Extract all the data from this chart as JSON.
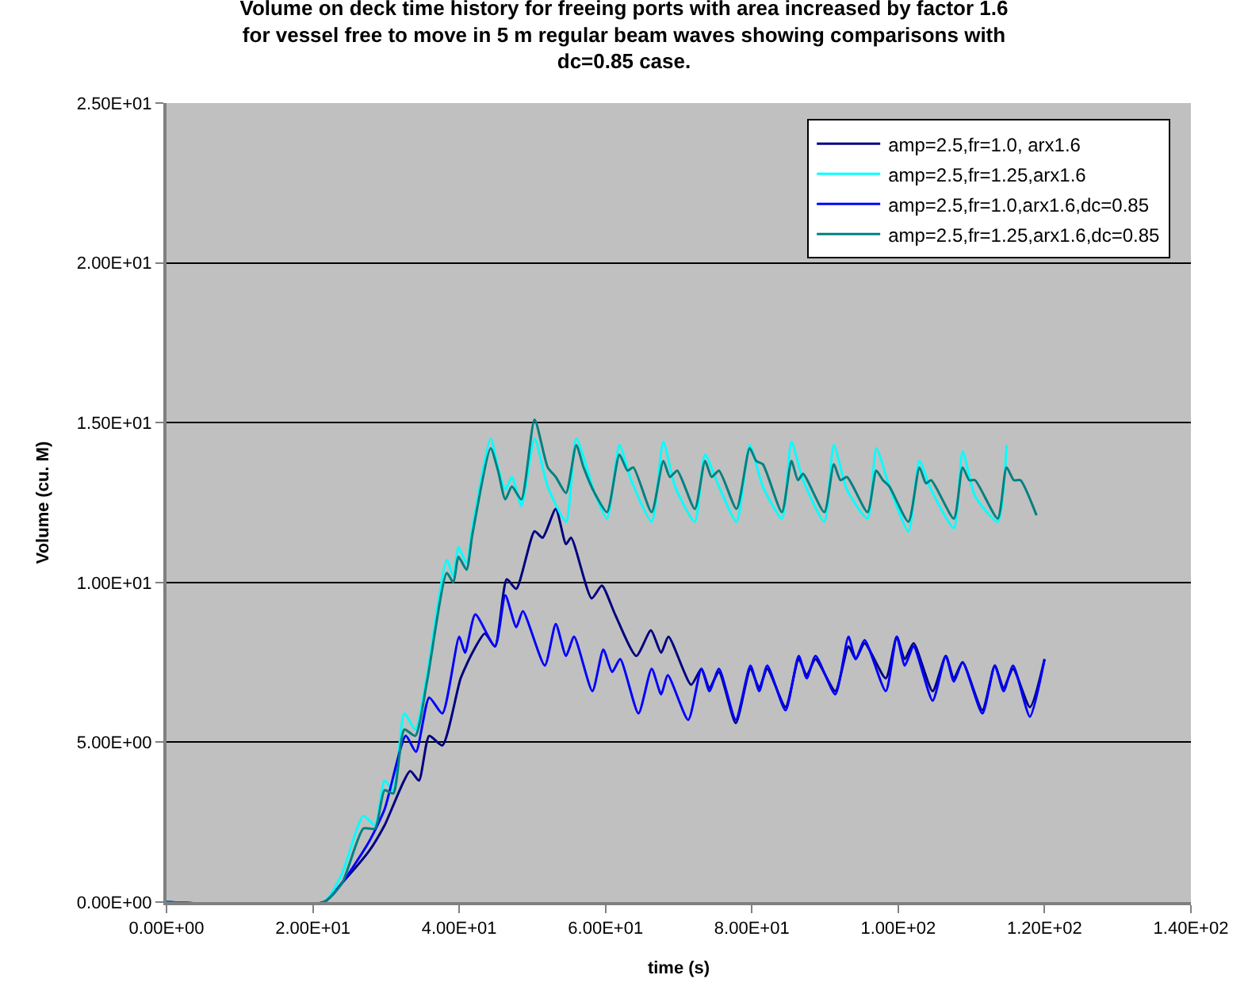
{
  "chart_data": {
    "type": "line",
    "title": "Volume on deck time history for freeing ports with area increased by factor 1.6 for vessel free to move in 5 m regular beam waves showing comparisons with dc=0.85 case.",
    "xlabel": "time (s)",
    "ylabel": "Volume (cu. M)",
    "xlim": [
      0,
      140
    ],
    "xticks": [
      {
        "value": 0,
        "label": "0.00E+00"
      },
      {
        "value": 20,
        "label": "2.00E+01"
      },
      {
        "value": 40,
        "label": "4.00E+01"
      },
      {
        "value": 60,
        "label": "6.00E+01"
      },
      {
        "value": 80,
        "label": "8.00E+01"
      },
      {
        "value": 100,
        "label": "1.00E+02"
      },
      {
        "value": 120,
        "label": "1.20E+02"
      },
      {
        "value": 140,
        "label": "1.40E+02"
      }
    ],
    "ylim": [
      0,
      25
    ],
    "yticks": [
      {
        "value": 0,
        "label": "0.00E+00"
      },
      {
        "value": 5,
        "label": "5.00E+00"
      },
      {
        "value": 10,
        "label": "1.00E+01"
      },
      {
        "value": 15,
        "label": "1.50E+01"
      },
      {
        "value": 20,
        "label": "2.00E+01"
      },
      {
        "value": 25,
        "label": "2.50E+01"
      }
    ],
    "grid": "y",
    "legend": "top right",
    "marker": "none",
    "line_style": "solid",
    "series": [
      {
        "name": "amp=2.5,fr=1.0, arx1.6",
        "color": "#000080",
        "x": [
          0,
          21.5,
          24,
          27.7,
          29.8,
          33.3,
          34.5,
          35.9,
          37.7,
          40.2,
          41.8,
          43.5,
          44.9,
          46.5,
          47.8,
          50.3,
          51.4,
          53.2,
          54.6,
          55.3,
          58.1,
          59.5,
          61.3,
          64.2,
          66.2,
          67.6,
          68.6,
          71.7,
          73.1,
          74.2,
          75.5,
          77.8,
          79.8,
          81,
          82.1,
          84.6,
          86.4,
          87.5,
          88.7,
          91.4,
          93.2,
          94.2,
          95.4,
          98.3,
          99.8,
          100.9,
          102.1,
          104.7,
          106.5,
          107.6,
          108.8,
          111.5,
          113.2,
          114.4,
          115.7,
          118,
          120
        ],
        "values": [
          0,
          0,
          0.6,
          1.6,
          2.4,
          4.1,
          3.8,
          5.2,
          4.9,
          7.0,
          7.8,
          8.4,
          8.0,
          10.1,
          9.8,
          11.6,
          11.4,
          12.3,
          11.2,
          11.4,
          9.5,
          9.9,
          9.0,
          7.7,
          8.5,
          7.8,
          8.3,
          6.8,
          7.3,
          6.7,
          7.2,
          5.6,
          7.3,
          6.7,
          7.3,
          6.1,
          7.6,
          7.1,
          7.6,
          6.6,
          8.0,
          7.6,
          8.1,
          7.0,
          8.3,
          7.6,
          8.1,
          6.6,
          7.7,
          7.0,
          7.5,
          6.0,
          7.4,
          6.7,
          7.3,
          6.1,
          7.6
        ]
      },
      {
        "name": "amp=2.5,fr=1.25,arx1.6",
        "color": "#00ffff",
        "x": [
          0,
          21.5,
          24,
          26.9,
          28.5,
          29.8,
          31,
          32.5,
          34,
          35.6,
          38.3,
          39.2,
          39.9,
          41,
          41.8,
          44.3,
          45.3,
          46.3,
          47.2,
          48.5,
          50.3,
          52.1,
          54.6,
          56,
          58.5,
          60.2,
          61.9,
          63.5,
          66.3,
          67.9,
          69.5,
          72.2,
          73.6,
          75.5,
          77.9,
          79.7,
          81.5,
          84.1,
          85.4,
          87,
          89.9,
          91.2,
          93,
          95.8,
          97,
          98.8,
          101.4,
          102.9,
          104.5,
          107.6,
          108.8,
          110.5,
          113.6,
          114.8
        ],
        "values": [
          0,
          0,
          0.9,
          2.7,
          2.4,
          3.8,
          3.5,
          5.9,
          5.4,
          7.1,
          10.7,
          10.2,
          11.1,
          10.6,
          11.7,
          14.5,
          13.6,
          12.9,
          13.3,
          12.4,
          14.5,
          13.0,
          11.9,
          14.5,
          12.8,
          12.0,
          14.3,
          13.2,
          11.9,
          14.4,
          13.0,
          11.9,
          14.0,
          13.0,
          11.9,
          14.3,
          13.0,
          12.0,
          14.4,
          13.2,
          11.9,
          14.3,
          12.9,
          12.0,
          14.2,
          13.0,
          11.6,
          13.8,
          12.9,
          11.7,
          14.1,
          12.7,
          11.9,
          14.3
        ]
      },
      {
        "name": "amp=2.5,fr=1.0,arx1.6,dc=0.85",
        "color": "#0000ff",
        "x": [
          0,
          21.5,
          24,
          27.7,
          29.8,
          32.7,
          34.1,
          35.9,
          37.7,
          40,
          40.8,
          42.2,
          44.9,
          46.3,
          47.8,
          48.7,
          51.7,
          53.2,
          54.6,
          55.7,
          58.2,
          59.7,
          60.9,
          62,
          64.5,
          66.3,
          67.6,
          68.5,
          71.3,
          73.1,
          74.2,
          75.5,
          77.8,
          79.8,
          81,
          82.1,
          84.6,
          86.4,
          87.5,
          88.7,
          91.4,
          93.2,
          94.2,
          95.4,
          98.3,
          99.8,
          100.9,
          102.1,
          104.7,
          106.5,
          107.6,
          108.8,
          111.5,
          113.2,
          114.4,
          115.7,
          118,
          120
        ],
        "values": [
          0,
          0,
          0.6,
          1.9,
          2.9,
          5.2,
          4.7,
          6.4,
          5.9,
          8.3,
          7.8,
          9.0,
          8.0,
          9.6,
          8.6,
          9.1,
          7.4,
          8.7,
          7.7,
          8.3,
          6.6,
          7.9,
          7.2,
          7.6,
          5.9,
          7.3,
          6.5,
          7.1,
          5.7,
          7.3,
          6.6,
          7.3,
          5.7,
          7.4,
          6.6,
          7.4,
          6.0,
          7.7,
          7.0,
          7.7,
          6.5,
          8.3,
          7.6,
          8.2,
          6.6,
          8.3,
          7.4,
          8.0,
          6.3,
          7.7,
          6.9,
          7.5,
          5.9,
          7.4,
          6.6,
          7.4,
          5.8,
          7.6
        ]
      },
      {
        "name": "amp=2.5,fr=1.25,arx1.6,dc=0.85",
        "color": "#008080",
        "x": [
          0,
          21.5,
          24,
          26.9,
          28.5,
          29.8,
          31,
          32.5,
          34,
          35.6,
          38.3,
          39.2,
          39.9,
          41,
          41.8,
          44.3,
          45.3,
          46.3,
          47.2,
          48.5,
          50.3,
          52.1,
          53.2,
          54.6,
          56,
          57,
          58.5,
          60.2,
          61.9,
          63,
          63.8,
          66.3,
          67.9,
          68.8,
          69.8,
          72.2,
          73.6,
          74.5,
          75.5,
          77.9,
          79.7,
          80.6,
          81.5,
          84.1,
          85.4,
          86.3,
          87,
          89.9,
          91.2,
          92.1,
          93,
          95.8,
          97,
          97.9,
          98.8,
          101.4,
          102.9,
          103.8,
          104.5,
          107.6,
          108.8,
          109.7,
          110.5,
          113.6,
          114.8,
          115.8,
          116.7,
          118.9
        ],
        "values": [
          0,
          0,
          0.6,
          2.3,
          2.3,
          3.5,
          3.4,
          5.4,
          5.2,
          6.9,
          10.3,
          10.0,
          10.8,
          10.4,
          11.5,
          14.2,
          13.5,
          12.6,
          13.0,
          12.6,
          15.1,
          13.6,
          13.3,
          12.8,
          14.3,
          13.6,
          12.8,
          12.2,
          14.0,
          13.5,
          13.6,
          12.2,
          13.8,
          13.3,
          13.5,
          12.3,
          13.8,
          13.3,
          13.5,
          12.3,
          14.2,
          13.8,
          13.7,
          12.2,
          13.8,
          13.2,
          13.4,
          12.2,
          13.7,
          13.2,
          13.3,
          12.2,
          13.5,
          13.2,
          13.0,
          11.9,
          13.6,
          13.1,
          13.2,
          12.0,
          13.6,
          13.2,
          13.2,
          12.0,
          13.6,
          13.2,
          13.2,
          12.1
        ]
      }
    ]
  }
}
